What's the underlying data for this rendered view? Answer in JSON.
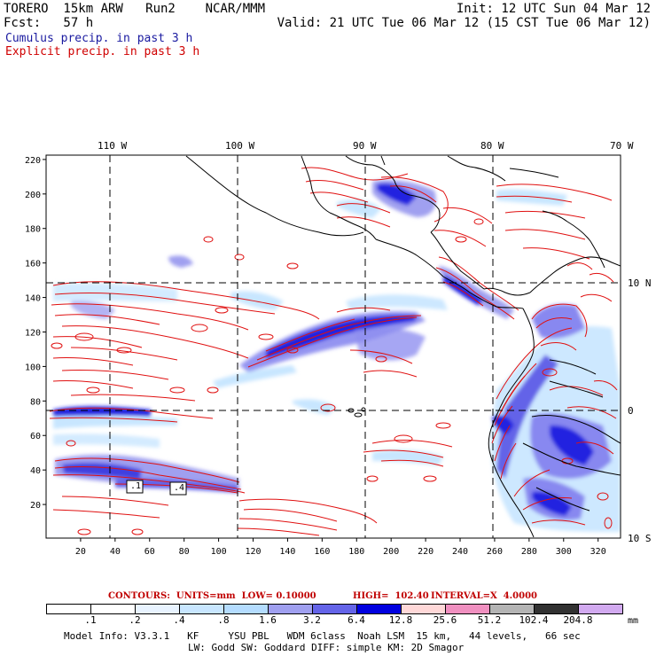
{
  "header": {
    "model": "TORERO  15km ARW   Run2    NCAR/MMM",
    "init": "Init: 12 UTC Sun 04 Mar 12",
    "fcst": "Fcst:   57 h",
    "valid": "Valid: 21 UTC Tue 06 Mar 12 (15 CST Tue 06 Mar 12)"
  },
  "legend": {
    "cumulus": "Cumulus precip. in past 3 h",
    "explicit": "Explicit precip. in past 3 h",
    "cumulus_color": "#1a1aa0",
    "explicit_color": "#d00000"
  },
  "axes": {
    "top_lon": [
      "110 W",
      "100 W",
      "90 W",
      "80 W",
      "70 W"
    ],
    "right_lat": [
      "10 N",
      "0",
      "10 S"
    ],
    "left_y": [
      "20",
      "40",
      "60",
      "80",
      "100",
      "120",
      "140",
      "160",
      "180",
      "200",
      "220"
    ],
    "bottom_x": [
      "20",
      "40",
      "60",
      "80",
      "100",
      "120",
      "140",
      "160",
      "180",
      "200",
      "220",
      "240",
      "260",
      "280",
      "300",
      "320"
    ]
  },
  "contour_info": {
    "contours": "CONTOURS:  UNITS=mm  LOW= 0.10000",
    "high": "HIGH=  102.40",
    "interval": "INTERVAL=X  4.0000"
  },
  "colorbar": {
    "unit": "mm",
    "labels": [
      ".1",
      ".2",
      ".4",
      ".8",
      "1.6",
      "3.2",
      "6.4",
      "12.8",
      "25.6",
      "51.2",
      "102.4",
      "204.8"
    ],
    "colors": [
      "#ffffff",
      "#ffffff",
      "#e8f3ff",
      "#c8e6ff",
      "#b4dcff",
      "#a0a0f0",
      "#6464e8",
      "#0000e0",
      "#ffd8d8",
      "#f090c0",
      "#b4b4b4",
      "#323232",
      "#d2aaf0"
    ]
  },
  "footer": {
    "line1": "Model Info: V3.3.1   KF     YSU PBL   WDM 6class  Noah LSM  15 km,   44 levels,   66 sec",
    "line2": "LW: Godd SW: Goddard DIFF: simple KM: 2D Smagor"
  },
  "map_boxes": [
    ".1",
    ".4"
  ]
}
